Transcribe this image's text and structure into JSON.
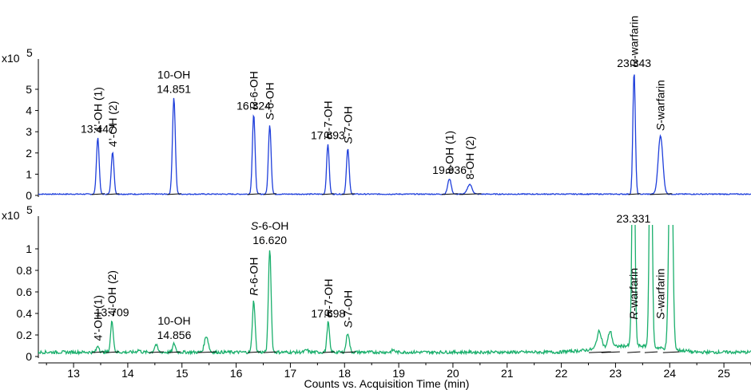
{
  "chart_data": [
    {
      "type": "line",
      "panel": "top",
      "color": "#1f3fdb",
      "y_multiplier": {
        "base": "x10",
        "exponent": "5"
      },
      "y_ticks": [
        "0",
        "1",
        "2",
        "3",
        "4",
        "5"
      ],
      "ylim": [
        0,
        5.9
      ],
      "xlim": [
        12.35,
        25.5
      ],
      "baseline": 0.06,
      "peaks": [
        {
          "x": 13.447,
          "y": 2.72,
          "w": 0.035
        },
        {
          "x": 13.72,
          "y": 2.06,
          "w": 0.035
        },
        {
          "x": 14.851,
          "y": 4.6,
          "w": 0.037
        },
        {
          "x": 16.324,
          "y": 3.82,
          "w": 0.035
        },
        {
          "x": 16.62,
          "y": 3.32,
          "w": 0.035
        },
        {
          "x": 17.693,
          "y": 2.42,
          "w": 0.033
        },
        {
          "x": 18.06,
          "y": 2.2,
          "w": 0.035
        },
        {
          "x": 19.936,
          "y": 0.78,
          "w": 0.045
        },
        {
          "x": 20.31,
          "y": 0.52,
          "w": 0.06
        },
        {
          "x": 23.343,
          "y": 5.82,
          "w": 0.032
        },
        {
          "x": 23.83,
          "y": 2.82,
          "w": 0.06
        }
      ],
      "annotations": [
        {
          "text": "13.447",
          "x": 13.447,
          "y": 2.72,
          "rotated": false,
          "italic_prefix": "",
          "rest": ""
        },
        {
          "text": "4’-OH (1)",
          "x": 13.447,
          "y": 2.72,
          "rotated": true,
          "italic_prefix": "",
          "rest": "4’-OH (1)"
        },
        {
          "text": "4’-OH (2)",
          "x": 13.72,
          "y": 2.06,
          "rotated": true,
          "italic_prefix": "",
          "rest": "4’-OH (2)"
        },
        {
          "text": "14.851",
          "x": 14.851,
          "y": 4.6,
          "rotated": false
        },
        {
          "text": "10-OH",
          "x": 14.851,
          "y": 4.6,
          "rotated": false,
          "stack": 1
        },
        {
          "text": "16.324",
          "x": 16.324,
          "y": 3.82,
          "rotated": false
        },
        {
          "text": "R-6-OH",
          "x": 16.324,
          "y": 3.82,
          "rotated": true,
          "italic_prefix": "R",
          "rest": "-6-OH"
        },
        {
          "text": "S-6-OH",
          "x": 16.62,
          "y": 3.32,
          "rotated": true,
          "italic_prefix": "S",
          "rest": "-6-OH"
        },
        {
          "text": "17.693",
          "x": 17.693,
          "y": 2.42,
          "rotated": false
        },
        {
          "text": "R-7-OH",
          "x": 17.693,
          "y": 2.42,
          "rotated": true,
          "italic_prefix": "R",
          "rest": "-7-OH"
        },
        {
          "text": "S-7-OH",
          "x": 18.06,
          "y": 2.2,
          "rotated": true,
          "italic_prefix": "S",
          "rest": "-7-OH"
        },
        {
          "text": "19.936",
          "x": 19.936,
          "y": 0.78,
          "rotated": false
        },
        {
          "text": "8-OH (1)",
          "x": 19.936,
          "y": 0.78,
          "rotated": true,
          "italic_prefix": "",
          "rest": "8-OH (1)"
        },
        {
          "text": "8-OH (2)",
          "x": 20.31,
          "y": 0.52,
          "rotated": true,
          "italic_prefix": "",
          "rest": "8-OH (2)"
        },
        {
          "text": "23.343",
          "x": 23.343,
          "y": 5.82,
          "rotated": false
        },
        {
          "text": "R-warfarin",
          "x": 23.343,
          "y": 5.82,
          "rotated": true,
          "italic_prefix": "R",
          "rest": "-warfarin"
        },
        {
          "text": "S-warfarin",
          "x": 23.83,
          "y": 2.82,
          "rotated": true,
          "italic_prefix": "S",
          "rest": "-warfarin"
        }
      ]
    },
    {
      "type": "line",
      "panel": "bottom",
      "color": "#1aaf6c",
      "y_multiplier": {
        "base": "x10",
        "exponent": "5"
      },
      "y_ticks": [
        "0",
        "0.2",
        "0.4",
        "0.6",
        "0.8",
        "1"
      ],
      "ylim": [
        0,
        1.2
      ],
      "xlim": [
        12.35,
        25.5
      ],
      "baseline": 0.04,
      "peaks": [
        {
          "x": 12.82,
          "y": 0.04,
          "w": 0.04
        },
        {
          "x": 13.45,
          "y": 0.1,
          "w": 0.035
        },
        {
          "x": 13.709,
          "y": 0.33,
          "w": 0.035
        },
        {
          "x": 14.2,
          "y": 0.06,
          "w": 0.04
        },
        {
          "x": 14.52,
          "y": 0.11,
          "w": 0.04
        },
        {
          "x": 14.856,
          "y": 0.12,
          "w": 0.035
        },
        {
          "x": 15.45,
          "y": 0.19,
          "w": 0.05
        },
        {
          "x": 16.324,
          "y": 0.52,
          "w": 0.035
        },
        {
          "x": 16.62,
          "y": 1.0,
          "w": 0.035
        },
        {
          "x": 17.3,
          "y": 0.06,
          "w": 0.04
        },
        {
          "x": 17.698,
          "y": 0.32,
          "w": 0.033
        },
        {
          "x": 18.06,
          "y": 0.22,
          "w": 0.04
        },
        {
          "x": 18.9,
          "y": 0.06,
          "w": 0.04
        },
        {
          "x": 22.7,
          "y": 0.2,
          "w": 0.06
        },
        {
          "x": 22.9,
          "y": 0.19,
          "w": 0.05
        },
        {
          "x": 23.331,
          "y": 2.5,
          "w": 0.035
        },
        {
          "x": 23.65,
          "y": 2.5,
          "w": 0.035
        },
        {
          "x": 24.02,
          "y": 2.5,
          "w": 0.045
        }
      ],
      "annotations": [
        {
          "text": "4’-OH (1)",
          "x": 13.45,
          "y": 0.1,
          "rotated": true,
          "italic_prefix": "",
          "rest": "4’-OH (1)"
        },
        {
          "text": "4’-OH (2)",
          "x": 13.709,
          "y": 0.33,
          "rotated": true,
          "italic_prefix": "",
          "rest": "4’-OH (2)"
        },
        {
          "text": "13.709",
          "x": 13.709,
          "y": 0.33,
          "rotated": false
        },
        {
          "text": "14.856",
          "x": 14.856,
          "y": 0.12,
          "rotated": false
        },
        {
          "text": "10-OH",
          "x": 14.856,
          "y": 0.12,
          "rotated": false,
          "stack": 1
        },
        {
          "text": "R-6-OH",
          "x": 16.324,
          "y": 0.52,
          "rotated": true,
          "italic_prefix": "R",
          "rest": "-6-OH"
        },
        {
          "text": "16.620",
          "x": 16.62,
          "y": 1.0,
          "rotated": false
        },
        {
          "text": "S-6-OH",
          "x": 16.62,
          "y": 1.0,
          "rotated": false,
          "stack": 1,
          "italic_prefix": "S",
          "rest": "-6-OH"
        },
        {
          "text": "17.698",
          "x": 17.698,
          "y": 0.32,
          "rotated": false
        },
        {
          "text": "R-7-OH",
          "x": 17.698,
          "y": 0.32,
          "rotated": true,
          "italic_prefix": "R",
          "rest": "-7-OH"
        },
        {
          "text": "S-7-OH",
          "x": 18.06,
          "y": 0.22,
          "rotated": true,
          "italic_prefix": "S",
          "rest": "-7-OH"
        },
        {
          "text": "23.331",
          "x": 23.331,
          "y": 1.2,
          "rotated": false
        },
        {
          "text": "R-warfarin",
          "x": 23.331,
          "y": 0.3,
          "rotated": true,
          "italic_prefix": "R",
          "rest": "-warfarin"
        },
        {
          "text": "S-warfarin",
          "x": 23.83,
          "y": 0.3,
          "rotated": true,
          "italic_prefix": "S",
          "rest": "-warfarin"
        }
      ]
    }
  ],
  "x_axis": {
    "label": "Counts vs. Acquisition Time (min)",
    "ticks": [
      13,
      14,
      15,
      16,
      17,
      18,
      19,
      20,
      21,
      22,
      23,
      24,
      25
    ]
  }
}
